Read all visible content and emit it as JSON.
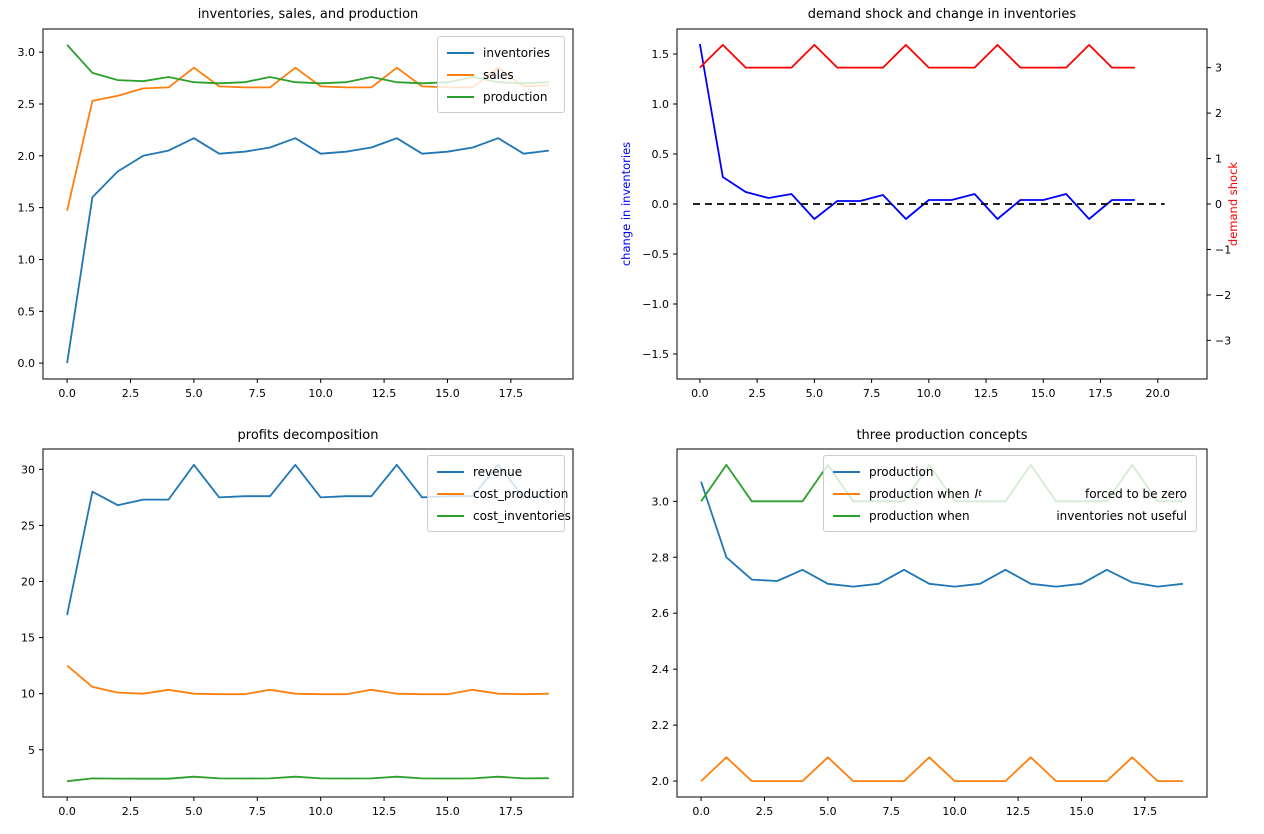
{
  "figure": {
    "background": "#ffffff"
  },
  "chart_data": [
    {
      "type": "line",
      "title": "inventories, sales, and production",
      "x": [
        0,
        1,
        2,
        3,
        4,
        5,
        6,
        7,
        8,
        9,
        10,
        11,
        12,
        13,
        14,
        15,
        16,
        17,
        18,
        19
      ],
      "xlim": [
        -0.95,
        19.95
      ],
      "xticks": {
        "values": [
          0,
          2.5,
          5,
          7.5,
          10,
          12.5,
          15,
          17.5
        ],
        "labels": [
          "0.0",
          "2.5",
          "5.0",
          "7.5",
          "10.0",
          "12.5",
          "15.0",
          "17.5"
        ]
      },
      "ylim": [
        -0.1535,
        3.2235
      ],
      "yticks": {
        "values": [
          0,
          0.5,
          1,
          1.5,
          2,
          2.5,
          3
        ],
        "labels": [
          "0.0",
          "0.5",
          "1.0",
          "1.5",
          "2.0",
          "2.5",
          "3.0"
        ]
      },
      "legend_position": "upper right",
      "series": [
        {
          "name": "inventories",
          "color": "#1f77b4",
          "values": [
            0.0,
            1.6,
            1.85,
            2.0,
            2.05,
            2.17,
            2.02,
            2.04,
            2.08,
            2.17,
            2.02,
            2.04,
            2.08,
            2.17,
            2.02,
            2.04,
            2.08,
            2.17,
            2.02,
            2.05
          ]
        },
        {
          "name": "sales",
          "color": "#ff7f0e",
          "values": [
            1.47,
            2.53,
            2.58,
            2.65,
            2.66,
            2.85,
            2.67,
            2.66,
            2.66,
            2.85,
            2.67,
            2.66,
            2.66,
            2.85,
            2.67,
            2.66,
            2.66,
            2.85,
            2.67,
            2.68
          ]
        },
        {
          "name": "production",
          "color": "#2ca02c",
          "values": [
            3.07,
            2.8,
            2.73,
            2.72,
            2.76,
            2.71,
            2.7,
            2.71,
            2.76,
            2.71,
            2.7,
            2.71,
            2.76,
            2.71,
            2.7,
            2.71,
            2.76,
            2.71,
            2.7,
            2.71
          ]
        }
      ]
    },
    {
      "type": "line",
      "title": "demand shock and change in inventories",
      "x": [
        0,
        1,
        2,
        3,
        4,
        5,
        6,
        7,
        8,
        9,
        10,
        11,
        12,
        13,
        14,
        15,
        16,
        17,
        18,
        19
      ],
      "xlim": [
        -1.0,
        22.15
      ],
      "xticks": {
        "values": [
          0,
          2.5,
          5,
          7.5,
          10,
          12.5,
          15,
          17.5,
          20
        ],
        "labels": [
          "0.0",
          "2.5",
          "5.0",
          "7.5",
          "10.0",
          "12.5",
          "15.0",
          "17.5",
          "20.0"
        ]
      },
      "ylim": [
        -1.75,
        1.75
      ],
      "yticks": {
        "values": [
          -1.5,
          -1,
          -0.5,
          0,
          0.5,
          1,
          1.5
        ],
        "labels": [
          "−1.5",
          "−1.0",
          "−0.5",
          "0.0",
          "0.5",
          "1.0",
          "1.5"
        ]
      },
      "ylabel_left": {
        "text": "change in inventories",
        "color": "#0000ff"
      },
      "ylabel_right": {
        "text": "demand shock",
        "color": "#ff0000"
      },
      "right_axis": {
        "ylim": [
          -3.85,
          3.85
        ],
        "yticks": {
          "values": [
            -3,
            -2,
            -1,
            0,
            1,
            2,
            3
          ],
          "labels": [
            "−3",
            "−2",
            "−1",
            "0",
            "1",
            "2",
            "3"
          ]
        }
      },
      "series": [
        {
          "name": "change in inventories",
          "color": "#0000ff",
          "axis": "left",
          "values": [
            1.6,
            0.27,
            0.12,
            0.06,
            0.1,
            -0.15,
            0.03,
            0.03,
            0.09,
            -0.15,
            0.04,
            0.04,
            0.1,
            -0.15,
            0.04,
            0.04,
            0.1,
            -0.15,
            0.04,
            0.04
          ]
        },
        {
          "name": "demand shock",
          "color": "#ff0000",
          "axis": "right",
          "values": [
            3.0,
            3.5,
            3.0,
            3.0,
            3.0,
            3.5,
            3.0,
            3.0,
            3.0,
            3.5,
            3.0,
            3.0,
            3.0,
            3.5,
            3.0,
            3.0,
            3.0,
            3.5,
            3.0,
            3.0
          ]
        },
        {
          "name": "zero line",
          "color": "#000000",
          "axis": "left",
          "dash": [
            7,
            5
          ],
          "x": [
            -0.3,
            20.3
          ],
          "values": [
            0,
            0
          ]
        }
      ]
    },
    {
      "type": "line",
      "title": "profits decomposition",
      "x": [
        0,
        1,
        2,
        3,
        4,
        5,
        6,
        7,
        8,
        9,
        10,
        11,
        12,
        13,
        14,
        15,
        16,
        17,
        18,
        19
      ],
      "xlim": [
        -0.95,
        19.95
      ],
      "xticks": {
        "values": [
          0,
          2.5,
          5,
          7.5,
          10,
          12.5,
          15,
          17.5
        ],
        "labels": [
          "0.0",
          "2.5",
          "5.0",
          "7.5",
          "10.0",
          "12.5",
          "15.0",
          "17.5"
        ]
      },
      "ylim": [
        0.79,
        31.81
      ],
      "yticks": {
        "values": [
          5,
          10,
          15,
          20,
          25,
          30
        ],
        "labels": [
          "5",
          "10",
          "15",
          "20",
          "25",
          "30"
        ]
      },
      "legend_position": "upper right",
      "series": [
        {
          "name": "revenue",
          "color": "#1f77b4",
          "values": [
            17.0,
            28.0,
            26.8,
            27.3,
            27.3,
            30.4,
            27.5,
            27.6,
            27.6,
            30.4,
            27.5,
            27.6,
            27.6,
            30.4,
            27.5,
            27.6,
            27.6,
            30.4,
            27.5,
            27.6
          ]
        },
        {
          "name": "cost_production",
          "color": "#ff7f0e",
          "values": [
            12.5,
            10.6,
            10.1,
            10.0,
            10.35,
            10.0,
            9.95,
            9.95,
            10.35,
            10.0,
            9.95,
            9.95,
            10.35,
            10.0,
            9.95,
            9.95,
            10.35,
            10.0,
            9.95,
            10.0
          ]
        },
        {
          "name": "cost_inventories",
          "color": "#2ca02c",
          "values": [
            2.2,
            2.45,
            2.43,
            2.42,
            2.42,
            2.6,
            2.45,
            2.44,
            2.45,
            2.6,
            2.45,
            2.44,
            2.45,
            2.6,
            2.45,
            2.44,
            2.45,
            2.6,
            2.45,
            2.47
          ]
        }
      ]
    },
    {
      "type": "line",
      "title": "three production concepts",
      "x": [
        0,
        1,
        2,
        3,
        4,
        5,
        6,
        7,
        8,
        9,
        10,
        11,
        12,
        13,
        14,
        15,
        16,
        17,
        18,
        19
      ],
      "xlim": [
        -0.95,
        19.95
      ],
      "xticks": {
        "values": [
          0,
          2.5,
          5,
          7.5,
          10,
          12.5,
          15,
          17.5
        ],
        "labels": [
          "0.0",
          "2.5",
          "5.0",
          "7.5",
          "10.0",
          "12.5",
          "15.0",
          "17.5"
        ]
      },
      "ylim": [
        1.943,
        3.187
      ],
      "yticks": {
        "values": [
          2.0,
          2.2,
          2.4,
          2.6,
          2.8,
          3.0
        ],
        "labels": [
          "2.0",
          "2.2",
          "2.4",
          "2.6",
          "2.8",
          "3.0"
        ]
      },
      "legend_position": "upper right",
      "series": [
        {
          "name": "production",
          "color": "#1f77b4",
          "values": [
            3.07,
            2.8,
            2.72,
            2.715,
            2.755,
            2.705,
            2.695,
            2.705,
            2.755,
            2.705,
            2.695,
            2.705,
            2.755,
            2.705,
            2.695,
            2.705,
            2.755,
            2.71,
            2.695,
            2.705
          ]
        },
        {
          "name": "production when It forced to be zero",
          "color": "#ff7f0e",
          "legend": {
            "pre": "production when",
            "math": "I",
            "sub": "t",
            "post": "forced to be zero"
          },
          "values": [
            2.0,
            2.085,
            2.0,
            2.0,
            2.0,
            2.085,
            2.0,
            2.0,
            2.0,
            2.085,
            2.0,
            2.0,
            2.0,
            2.085,
            2.0,
            2.0,
            2.0,
            2.085,
            2.0,
            2.0
          ]
        },
        {
          "name": "production when inventories not useful",
          "color": "#2ca02c",
          "legend": {
            "pre": "production when",
            "post": "inventories not useful"
          },
          "values": [
            3.0,
            3.13,
            3.0,
            3.0,
            3.0,
            3.13,
            3.0,
            3.0,
            3.0,
            3.13,
            3.0,
            3.0,
            3.0,
            3.13,
            3.0,
            3.0,
            3.0,
            3.13,
            3.0,
            3.0
          ]
        }
      ]
    }
  ]
}
